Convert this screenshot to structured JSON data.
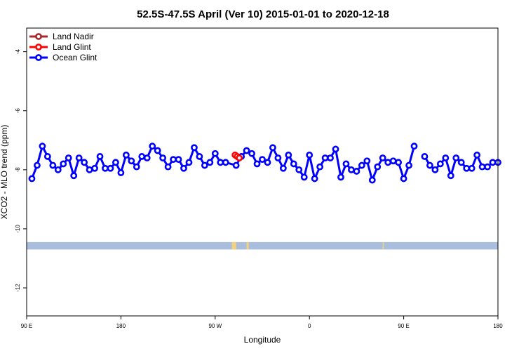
{
  "chart_data": {
    "type": "line",
    "title": "52.5S-47.5S April (Ver 10)   2015-01-01 to 2020-12-18",
    "xlabel": "Longitude",
    "ylabel": "XCO2 - MLO trend (ppm)",
    "xlim": [
      0,
      450
    ],
    "ylim": [
      -12.95,
      -3.2
    ],
    "x_ticks": [
      {
        "value": 0,
        "label": "90 E"
      },
      {
        "value": 90,
        "label": "180"
      },
      {
        "value": 180,
        "label": "90 W"
      },
      {
        "value": 270,
        "label": "0"
      },
      {
        "value": 360,
        "label": "90 E"
      },
      {
        "value": 450,
        "label": "180"
      }
    ],
    "y_ticks": [
      {
        "value": -4,
        "label": "-4"
      },
      {
        "value": -6,
        "label": "-6"
      },
      {
        "value": -8,
        "label": "-8"
      },
      {
        "value": -10,
        "label": "-10"
      },
      {
        "value": -12,
        "label": "-12"
      }
    ],
    "legend": {
      "placement": "top-left",
      "entries": [
        {
          "name": "Land Nadir",
          "color": "#a52a2a"
        },
        {
          "name": "Land Glint",
          "color": "#ff0000"
        },
        {
          "name": "Ocean Glint",
          "color": "#0000ff"
        }
      ]
    },
    "series": [
      {
        "name": "Ocean Glint",
        "color": "#0000ff",
        "segments": [
          [
            [
              5,
              -8.3
            ],
            [
              10,
              -7.85
            ],
            [
              15,
              -7.2
            ],
            [
              20,
              -7.55
            ],
            [
              25,
              -7.85
            ],
            [
              30,
              -8.0
            ],
            [
              35,
              -7.8
            ],
            [
              40,
              -7.6
            ],
            [
              45,
              -8.2
            ],
            [
              50,
              -7.6
            ],
            [
              55,
              -7.75
            ],
            [
              60,
              -8.0
            ],
            [
              65,
              -7.95
            ],
            [
              70,
              -7.55
            ],
            [
              75,
              -7.95
            ],
            [
              80,
              -7.95
            ],
            [
              85,
              -7.75
            ],
            [
              90,
              -8.1
            ],
            [
              95,
              -7.5
            ],
            [
              100,
              -7.7
            ],
            [
              105,
              -7.9
            ],
            [
              110,
              -7.55
            ],
            [
              115,
              -7.6
            ],
            [
              120,
              -7.2
            ],
            [
              125,
              -7.35
            ],
            [
              130,
              -7.6
            ],
            [
              135,
              -7.9
            ],
            [
              140,
              -7.65
            ],
            [
              145,
              -7.65
            ],
            [
              150,
              -7.95
            ],
            [
              155,
              -7.75
            ],
            [
              160,
              -7.25
            ],
            [
              165,
              -7.55
            ],
            [
              170,
              -7.85
            ],
            [
              175,
              -7.75
            ],
            [
              180,
              -7.45
            ],
            [
              185,
              -7.75
            ],
            [
              190,
              -7.75
            ],
            [
              200,
              -7.85
            ],
            [
              205,
              -7.55
            ],
            [
              210,
              -7.35
            ],
            [
              215,
              -7.45
            ],
            [
              220,
              -7.8
            ],
            [
              225,
              -7.65
            ],
            [
              230,
              -7.75
            ],
            [
              235,
              -7.25
            ],
            [
              240,
              -7.6
            ],
            [
              245,
              -7.95
            ],
            [
              250,
              -7.5
            ],
            [
              255,
              -7.8
            ],
            [
              260,
              -8.0
            ],
            [
              265,
              -8.25
            ],
            [
              270,
              -7.5
            ],
            [
              275,
              -8.3
            ],
            [
              280,
              -7.9
            ],
            [
              285,
              -7.6
            ],
            [
              290,
              -7.6
            ],
            [
              295,
              -7.3
            ],
            [
              300,
              -8.25
            ],
            [
              305,
              -7.8
            ],
            [
              310,
              -8.0
            ],
            [
              315,
              -8.05
            ],
            [
              320,
              -7.85
            ],
            [
              325,
              -7.7
            ],
            [
              330,
              -8.35
            ],
            [
              335,
              -7.9
            ],
            [
              340,
              -7.6
            ],
            [
              345,
              -7.75
            ],
            [
              350,
              -7.7
            ],
            [
              355,
              -7.75
            ],
            [
              360,
              -8.3
            ],
            [
              365,
              -7.85
            ],
            [
              370,
              -7.2
            ]
          ],
          [
            [
              380,
              -7.55
            ],
            [
              385,
              -7.85
            ],
            [
              390,
              -8.0
            ],
            [
              395,
              -7.8
            ],
            [
              400,
              -7.6
            ],
            [
              405,
              -8.2
            ],
            [
              410,
              -7.6
            ],
            [
              415,
              -7.75
            ],
            [
              420,
              -7.95
            ],
            [
              425,
              -7.95
            ],
            [
              430,
              -7.5
            ],
            [
              435,
              -7.9
            ],
            [
              440,
              -7.9
            ],
            [
              445,
              -7.75
            ],
            [
              450,
              -7.75
            ]
          ]
        ]
      },
      {
        "name": "Land Glint",
        "color": "#ff0000",
        "segments": [
          [
            [
              199,
              -7.5
            ],
            [
              201,
              -7.55
            ],
            [
              203,
              -7.6
            ]
          ]
        ]
      }
    ],
    "land_band": {
      "y_range": [
        -10.7,
        -10.45
      ],
      "ocean_color": "#a8bedc",
      "land_color": "#f5d27a",
      "land_spans": [
        [
          196,
          200
        ],
        [
          210,
          212
        ],
        [
          340,
          341
        ]
      ]
    }
  }
}
